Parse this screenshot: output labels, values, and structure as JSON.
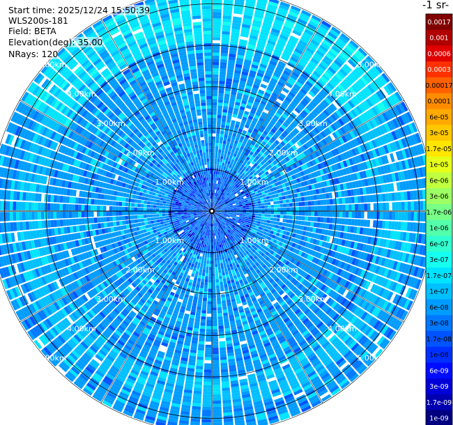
{
  "header": {
    "start_time": "Start time: 2025/12/24 15:50:39",
    "instrument": "WLS200s-181",
    "field": "Field: BETA",
    "elevation": "Elevation(deg): 35.00",
    "nrays": "NRays: 120"
  },
  "colorbar": {
    "unit_fragment": "-1 sr-",
    "labels": [
      "0.0017",
      "0.001",
      "0.0006",
      "0.0003",
      "0.00017",
      "0.0001",
      "6e-05",
      "3e-05",
      "1.7e-05",
      "1e-05",
      "6e-06",
      "3e-06",
      "1.7e-06",
      "1e-06",
      "6e-07",
      "3e-07",
      "1.7e-07",
      "1e-07",
      "6e-08",
      "3e-08",
      "1.7e-08",
      "1e-08",
      "6e-09",
      "3e-09",
      "1.7e-09",
      "1e-09"
    ],
    "colors": [
      "#800000",
      "#b00000",
      "#e00000",
      "#ff3000",
      "#ff6000",
      "#ff8c00",
      "#ffaa00",
      "#ffc800",
      "#ffe600",
      "#e6ff1a",
      "#c0ff3f",
      "#9cff63",
      "#78ff87",
      "#54ffab",
      "#30ffcf",
      "#14fff0",
      "#00e4ff",
      "#00c0ff",
      "#009cff",
      "#0078ff",
      "#0054ff",
      "#0030ff",
      "#000cff",
      "#0000d8",
      "#0000b0",
      "#000080"
    ],
    "white_text_indices": [
      0,
      1,
      2,
      3,
      22,
      23,
      24,
      25
    ]
  },
  "chart_data": {
    "type": "heatmap",
    "projection": "PPI polar scan",
    "field": "BETA",
    "elevation_deg": 35.0,
    "n_rays": 120,
    "range_rings_km": [
      1.0,
      2.0,
      3.0,
      4.0,
      5.0
    ],
    "ring_labels": [
      "1.00km",
      "2.00km",
      "3.00km",
      "4.00km",
      "5.00km"
    ],
    "max_range_km": 5.35,
    "scale": "log",
    "value_range": [
      1e-09,
      0.0017
    ],
    "ring_bands": [
      {
        "from_km": 0.0,
        "to_km": 1.0,
        "typical_beta": 3e-08
      },
      {
        "from_km": 1.0,
        "to_km": 4.0,
        "typical_beta": 6e-08
      },
      {
        "from_km": 4.0,
        "to_km": 4.7,
        "typical_beta": 8e-08
      },
      {
        "from_km": 4.7,
        "to_km": 5.35,
        "typical_beta": 6e-08
      }
    ],
    "enhanced_sectors": [
      {
        "az_from_deg": 300,
        "az_to_deg": 60,
        "from_km": 4.0,
        "to_km": 5.2,
        "beta": 1.7e-07
      }
    ]
  }
}
